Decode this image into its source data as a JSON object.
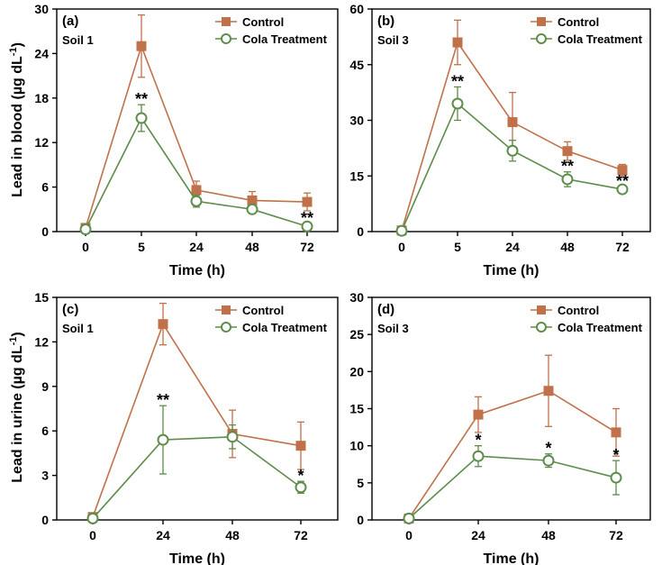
{
  "figure": {
    "yaxis_blood": "Lead in blood (µg dL",
    "yaxis_urine": "Lead in urine (µg dL",
    "yaxis_unit_sup": "-1",
    "yaxis_close": ")",
    "colors": {
      "control": "#C0714A",
      "cola": "#5E8C4A"
    }
  },
  "chart_data": [
    {
      "panel": "(a)",
      "soil": "Soil 1",
      "type": "line",
      "xlabel": "Time (h)",
      "categories": [
        "0",
        "5",
        "24",
        "48",
        "72"
      ],
      "ylim": [
        0,
        30
      ],
      "yticks": [
        "0",
        "6",
        "12",
        "18",
        "24",
        "30"
      ],
      "series": [
        {
          "name": "Control",
          "marker": "square",
          "values": [
            0.5,
            25.0,
            5.6,
            4.2,
            4.0
          ],
          "errors": [
            0.2,
            4.2,
            1.2,
            1.2,
            1.2
          ]
        },
        {
          "name": "Cola Treatment",
          "marker": "circle",
          "values": [
            0.3,
            15.3,
            4.1,
            3.0,
            0.7
          ],
          "errors": [
            0.2,
            1.8,
            0.8,
            0.4,
            0.4
          ]
        }
      ],
      "significance": [
        null,
        "**",
        null,
        null,
        "**"
      ]
    },
    {
      "panel": "(b)",
      "soil": "Soil 3",
      "type": "line",
      "xlabel": "Time (h)",
      "categories": [
        "0",
        "5",
        "24",
        "48",
        "72"
      ],
      "ylim": [
        0,
        60
      ],
      "yticks": [
        "0",
        "15",
        "30",
        "45",
        "60"
      ],
      "series": [
        {
          "name": "Control",
          "marker": "square",
          "values": [
            0.3,
            51.0,
            29.5,
            21.7,
            16.6
          ],
          "errors": [
            0.2,
            6.0,
            8.0,
            2.5,
            1.5
          ]
        },
        {
          "name": "Cola Treatment",
          "marker": "circle",
          "values": [
            0.2,
            34.5,
            21.8,
            14.1,
            11.4
          ],
          "errors": [
            0.2,
            4.5,
            2.8,
            2.0,
            0.8
          ]
        }
      ],
      "significance": [
        null,
        "**",
        null,
        "**",
        "**"
      ]
    },
    {
      "panel": "(c)",
      "soil": "Soil 1",
      "type": "line",
      "xlabel": "Time (h)",
      "categories": [
        "0",
        "24",
        "48",
        "72"
      ],
      "ylim": [
        0,
        15
      ],
      "yticks": [
        "0",
        "3",
        "6",
        "9",
        "12",
        "15"
      ],
      "series": [
        {
          "name": "Control",
          "marker": "square",
          "values": [
            0.2,
            13.2,
            5.8,
            5.0
          ],
          "errors": [
            0.1,
            1.4,
            1.6,
            1.6
          ]
        },
        {
          "name": "Cola Treatment",
          "marker": "circle",
          "values": [
            0.1,
            5.4,
            5.6,
            2.2
          ],
          "errors": [
            0.1,
            2.3,
            0.8,
            0.4
          ]
        }
      ],
      "significance": [
        null,
        "**",
        null,
        "*"
      ]
    },
    {
      "panel": "(d)",
      "soil": "Soil 3",
      "type": "line",
      "xlabel": "Time (h)",
      "categories": [
        "0",
        "24",
        "48",
        "72"
      ],
      "ylim": [
        0,
        30
      ],
      "yticks": [
        "0",
        "5",
        "10",
        "15",
        "20",
        "25",
        "30"
      ],
      "series": [
        {
          "name": "Control",
          "marker": "square",
          "values": [
            0.2,
            14.2,
            17.4,
            11.8
          ],
          "errors": [
            0.1,
            2.4,
            4.8,
            3.2
          ]
        },
        {
          "name": "Cola Treatment",
          "marker": "circle",
          "values": [
            0.2,
            8.6,
            8.0,
            5.7
          ],
          "errors": [
            0.1,
            1.4,
            0.9,
            2.3
          ]
        }
      ],
      "significance": [
        null,
        "*",
        "*",
        "*"
      ]
    }
  ]
}
